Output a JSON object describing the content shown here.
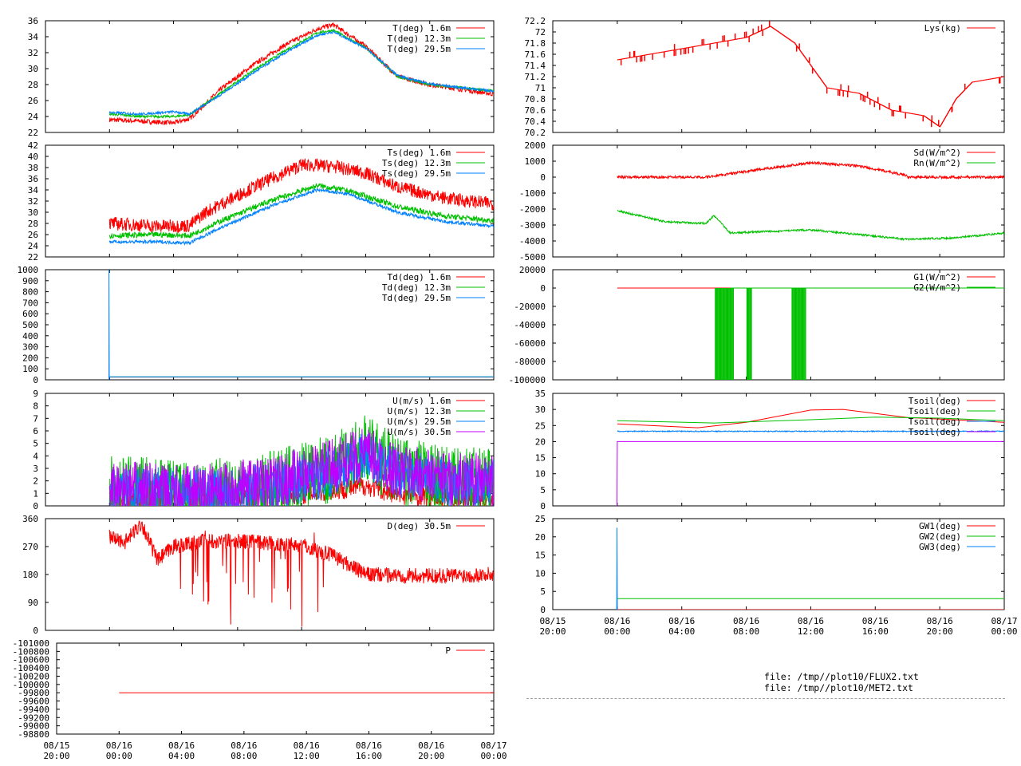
{
  "colors": {
    "red": "#ff0000",
    "green": "#00c000",
    "blue": "#0080ff",
    "purple": "#c000ff"
  },
  "footer": {
    "files": [
      "file: /tmp//plot10/FLUX2.txt",
      "file: /tmp//plot10/MET2.txt"
    ]
  },
  "time_axis": {
    "start": "08/15 20:00",
    "end": "08/17 00:00",
    "ticks": [
      {
        "t": "2008-08-15T20:00",
        "date": "08/15",
        "time": "20:00"
      },
      {
        "t": "2008-08-16T00:00",
        "date": "08/16",
        "time": "00:00"
      },
      {
        "t": "2008-08-16T04:00",
        "date": "08/16",
        "time": "04:00"
      },
      {
        "t": "2008-08-16T08:00",
        "date": "08/16",
        "time": "08:00"
      },
      {
        "t": "2008-08-16T12:00",
        "date": "08/16",
        "time": "12:00"
      },
      {
        "t": "2008-08-16T16:00",
        "date": "08/16",
        "time": "16:00"
      },
      {
        "t": "2008-08-16T20:00",
        "date": "08/16",
        "time": "20:00"
      },
      {
        "t": "2008-08-17T00:00",
        "date": "08/17",
        "time": "00:00"
      }
    ]
  },
  "chart_data": [
    {
      "id": "air-temperature",
      "type": "line",
      "ylim": [
        22,
        36
      ],
      "yticks": [
        "22",
        "24",
        "26",
        "28",
        "30",
        "32",
        "34",
        "36"
      ],
      "series": [
        {
          "name": "T(deg)  1.6m",
          "color": "red",
          "noise": 0.3,
          "x": [
            "2008-08-16T00:00",
            "2008-08-16T02:00",
            "2008-08-16T04:00",
            "2008-08-16T05:00",
            "2008-08-16T07:00",
            "2008-08-16T09:00",
            "2008-08-16T11:00",
            "2008-08-16T13:00",
            "2008-08-16T14:00",
            "2008-08-16T16:00",
            "2008-08-16T18:00",
            "2008-08-16T20:00",
            "2008-08-16T22:00",
            "2008-08-17T00:00"
          ],
          "y": [
            23.6,
            23.4,
            23.2,
            23.7,
            27.5,
            30.5,
            33.0,
            35.0,
            35.5,
            32.8,
            29.0,
            28.0,
            27.4,
            26.8
          ]
        },
        {
          "name": "T(deg) 12.3m",
          "color": "green",
          "noise": 0.15,
          "x": [
            "2008-08-16T00:00",
            "2008-08-16T02:00",
            "2008-08-16T04:00",
            "2008-08-16T05:00",
            "2008-08-16T07:00",
            "2008-08-16T09:00",
            "2008-08-16T11:00",
            "2008-08-16T13:00",
            "2008-08-16T14:00",
            "2008-08-16T16:00",
            "2008-08-16T18:00",
            "2008-08-16T20:00",
            "2008-08-16T22:00",
            "2008-08-17T00:00"
          ],
          "y": [
            24.3,
            24.0,
            24.0,
            24.2,
            27.0,
            29.8,
            32.3,
            34.5,
            34.8,
            32.6,
            29.0,
            28.0,
            27.6,
            27.2
          ]
        },
        {
          "name": "T(deg) 29.5m",
          "color": "blue",
          "noise": 0.15,
          "x": [
            "2008-08-16T00:00",
            "2008-08-16T02:00",
            "2008-08-16T04:00",
            "2008-08-16T05:00",
            "2008-08-16T07:00",
            "2008-08-16T09:00",
            "2008-08-16T11:00",
            "2008-08-16T13:00",
            "2008-08-16T14:00",
            "2008-08-16T16:00",
            "2008-08-16T18:00",
            "2008-08-16T20:00",
            "2008-08-16T22:00",
            "2008-08-17T00:00"
          ],
          "y": [
            24.5,
            24.3,
            24.6,
            24.3,
            26.8,
            29.5,
            32.0,
            34.2,
            34.6,
            32.6,
            29.1,
            28.1,
            27.6,
            27.2
          ]
        }
      ]
    },
    {
      "id": "surface-temperature",
      "type": "line",
      "ylim": [
        22,
        42
      ],
      "yticks": [
        "22",
        "24",
        "26",
        "28",
        "30",
        "32",
        "34",
        "36",
        "38",
        "40",
        "42"
      ],
      "series": [
        {
          "name": "Ts(deg)  1.6m",
          "color": "red",
          "noise": 1.2,
          "x": [
            "2008-08-16T00:00",
            "2008-08-16T03:00",
            "2008-08-16T05:00",
            "2008-08-16T06:00",
            "2008-08-16T09:00",
            "2008-08-16T12:00",
            "2008-08-16T14:00",
            "2008-08-16T16:00",
            "2008-08-16T18:00",
            "2008-08-16T21:00",
            "2008-08-17T00:00"
          ],
          "y": [
            28.0,
            27.5,
            27.6,
            30.0,
            34.5,
            38.5,
            38.2,
            37.0,
            34.5,
            32.5,
            31.5
          ]
        },
        {
          "name": "Ts(deg) 12.3m",
          "color": "green",
          "noise": 0.5,
          "x": [
            "2008-08-16T00:00",
            "2008-08-16T03:00",
            "2008-08-16T05:00",
            "2008-08-16T07:00",
            "2008-08-16T10:00",
            "2008-08-16T13:00",
            "2008-08-16T15:00",
            "2008-08-16T18:00",
            "2008-08-16T21:00",
            "2008-08-17T00:00"
          ],
          "y": [
            25.8,
            26.0,
            25.8,
            28.5,
            32.0,
            34.8,
            33.8,
            31.0,
            29.3,
            28.5
          ]
        },
        {
          "name": "Ts(deg) 29.5m",
          "color": "blue",
          "noise": 0.3,
          "x": [
            "2008-08-16T00:00",
            "2008-08-16T03:00",
            "2008-08-16T05:00",
            "2008-08-16T07:00",
            "2008-08-16T10:00",
            "2008-08-16T13:00",
            "2008-08-16T15:00",
            "2008-08-16T18:00",
            "2008-08-16T21:00",
            "2008-08-17T00:00"
          ],
          "y": [
            24.7,
            24.7,
            24.5,
            27.3,
            31.0,
            34.0,
            33.2,
            30.0,
            28.3,
            27.5
          ]
        }
      ]
    },
    {
      "id": "dewpoint-temperature",
      "type": "line",
      "ylim": [
        0,
        1000
      ],
      "yticks": [
        "0",
        "100",
        "200",
        "300",
        "400",
        "500",
        "600",
        "700",
        "800",
        "900",
        "1000"
      ],
      "series": [
        {
          "name": "Td(deg)  1.6m",
          "color": "red",
          "noise": 0,
          "x": [
            "2008-08-16T00:00",
            "2008-08-17T00:00"
          ],
          "y": [
            25,
            25
          ]
        },
        {
          "name": "Td(deg) 12.3m",
          "color": "green",
          "noise": 0,
          "x": [
            "2008-08-16T00:00",
            "2008-08-17T00:00"
          ],
          "y": [
            26,
            26
          ]
        },
        {
          "name": "Td(deg) 29.5m",
          "color": "blue",
          "noise": 0,
          "x": [
            "2008-08-15T23:58",
            "2008-08-15T23:58",
            "2008-08-15T23:59",
            "2008-08-16T00:00",
            "2008-08-17T00:00"
          ],
          "y": [
            0,
            1000,
            20,
            27,
            27
          ]
        }
      ]
    },
    {
      "id": "wind-speed",
      "type": "line",
      "ylim": [
        0,
        9
      ],
      "yticks": [
        "0",
        "1",
        "2",
        "3",
        "4",
        "5",
        "6",
        "7",
        "8",
        "9"
      ],
      "series": [
        {
          "name": "U(m/s)  1.6m",
          "color": "red",
          "noise": 0.8,
          "x": [
            "2008-08-16T00:00",
            "2008-08-16T06:00",
            "2008-08-16T10:00",
            "2008-08-16T14:00",
            "2008-08-16T16:00",
            "2008-08-16T18:00",
            "2008-08-16T21:00",
            "2008-08-17T00:00"
          ],
          "y": [
            0.3,
            0.4,
            0.7,
            1.2,
            1.6,
            0.9,
            0.7,
            0.6
          ]
        },
        {
          "name": "U(m/s) 12.3m",
          "color": "green",
          "noise": 2.8,
          "x": [
            "2008-08-16T00:00",
            "2008-08-16T06:00",
            "2008-08-16T10:00",
            "2008-08-16T14:00",
            "2008-08-16T16:00",
            "2008-08-16T18:00",
            "2008-08-16T21:00",
            "2008-08-17T00:00"
          ],
          "y": [
            1.2,
            1.0,
            1.6,
            3.0,
            4.5,
            2.8,
            2.0,
            1.8
          ]
        },
        {
          "name": "U(m/s) 29.5m",
          "color": "blue",
          "noise": 2.0,
          "x": [
            "2008-08-16T00:00",
            "2008-08-16T06:00",
            "2008-08-16T10:00",
            "2008-08-16T14:00",
            "2008-08-16T16:00",
            "2008-08-16T18:00",
            "2008-08-16T21:00",
            "2008-08-17T00:00"
          ],
          "y": [
            1.2,
            1.0,
            1.5,
            2.8,
            4.0,
            2.6,
            1.9,
            1.7
          ]
        },
        {
          "name": "U(m/s) 30.5m",
          "color": "purple",
          "noise": 2.2,
          "x": [
            "2008-08-16T00:00",
            "2008-08-16T02:00",
            "2008-08-16T04:00",
            "2008-08-16T06:00",
            "2008-08-16T10:00",
            "2008-08-16T14:00",
            "2008-08-16T16:00",
            "2008-08-16T18:00",
            "2008-08-16T21:00",
            "2008-08-17T00:00"
          ],
          "y": [
            1.2,
            1.4,
            1.0,
            1.2,
            1.8,
            3.2,
            4.2,
            2.8,
            2.2,
            2.0
          ]
        }
      ]
    },
    {
      "id": "wind-direction",
      "type": "line",
      "ylim": [
        0,
        360
      ],
      "yticks": [
        "0",
        "90",
        "180",
        "270",
        "360"
      ],
      "series": [
        {
          "name": "D(deg)  30.5m",
          "color": "red",
          "noise": 25,
          "spikes": [
            0.3,
            0.62
          ],
          "x": [
            "2008-08-16T00:00",
            "2008-08-16T01:00",
            "2008-08-16T02:00",
            "2008-08-16T03:00",
            "2008-08-16T04:00",
            "2008-08-16T06:00",
            "2008-08-16T09:00",
            "2008-08-16T12:00",
            "2008-08-16T14:00",
            "2008-08-16T16:00",
            "2008-08-16T20:00",
            "2008-08-17T00:00"
          ],
          "y": [
            300,
            285,
            345,
            225,
            270,
            290,
            285,
            275,
            240,
            180,
            175,
            180
          ]
        }
      ]
    },
    {
      "id": "pressure",
      "type": "line",
      "ylim": [
        -101000,
        -98800
      ],
      "yticks_desc": true,
      "yticks": [
        "-101000",
        "-100800",
        "-100600",
        "-100400",
        "-100200",
        "-100000",
        "-99800",
        "-99600",
        "-99400",
        "-99200",
        "-99000",
        "-98800"
      ],
      "series": [
        {
          "name": "P",
          "color": "red",
          "noise": 0,
          "x": [
            "2008-08-16T00:00",
            "2008-08-17T00:00"
          ],
          "y": [
            -100000,
            -100000
          ]
        }
      ]
    },
    {
      "id": "lysimeter",
      "type": "line",
      "ylim": [
        70.2,
        72.2
      ],
      "yticks": [
        "70.2",
        "70.4",
        "70.6",
        "70.8",
        "71",
        "71.2",
        "71.4",
        "71.6",
        "71.8",
        "72",
        "72.2"
      ],
      "series": [
        {
          "name": "Lys(kg)",
          "color": "red",
          "noise": 0.08,
          "step": true,
          "x": [
            "2008-08-16T00:00",
            "2008-08-16T02:00",
            "2008-08-16T04:00",
            "2008-08-16T06:00",
            "2008-08-16T08:00",
            "2008-08-16T09:30",
            "2008-08-16T11:00",
            "2008-08-16T12:00",
            "2008-08-16T13:00",
            "2008-08-16T15:00",
            "2008-08-16T17:00",
            "2008-08-16T19:00",
            "2008-08-16T20:00",
            "2008-08-16T21:00",
            "2008-08-16T22:00",
            "2008-08-17T00:00"
          ],
          "y": [
            71.5,
            71.6,
            71.7,
            71.8,
            71.9,
            72.1,
            71.8,
            71.4,
            71.0,
            70.9,
            70.6,
            70.5,
            70.3,
            70.8,
            71.1,
            71.2
          ]
        }
      ]
    },
    {
      "id": "radiation",
      "type": "line",
      "ylim": [
        -5000,
        2000
      ],
      "yticks": [
        "-5000",
        "-4000",
        "-3000",
        "-2000",
        "-1000",
        "0",
        "1000",
        "2000"
      ],
      "series": [
        {
          "name": "Sd(W/m^2)",
          "color": "red",
          "noise": 80,
          "x": [
            "2008-08-16T00:00",
            "2008-08-16T05:30",
            "2008-08-16T09:00",
            "2008-08-16T12:00",
            "2008-08-16T15:00",
            "2008-08-16T18:00",
            "2008-08-16T18:01",
            "2008-08-17T00:00"
          ],
          "y": [
            0,
            0,
            500,
            900,
            700,
            100,
            0,
            0
          ]
        },
        {
          "name": "Rn(W/m^2)",
          "color": "green",
          "noise": 60,
          "x": [
            "2008-08-16T00:00",
            "2008-08-16T03:00",
            "2008-08-16T05:30",
            "2008-08-16T06:00",
            "2008-08-16T07:00",
            "2008-08-16T12:00",
            "2008-08-16T15:00",
            "2008-08-16T18:00",
            "2008-08-16T21:00",
            "2008-08-17T00:00"
          ],
          "y": [
            -2100,
            -2800,
            -2900,
            -2400,
            -3500,
            -3300,
            -3600,
            -3900,
            -3800,
            -3500
          ]
        }
      ]
    },
    {
      "id": "ground-heat-flux",
      "type": "line",
      "ylim": [
        -100000,
        20000
      ],
      "yticks": [
        "-100000",
        "-80000",
        "-60000",
        "-40000",
        "-20000",
        "0",
        "20000"
      ],
      "series": [
        {
          "name": "G1(W/m^2)",
          "color": "red",
          "noise": 0,
          "x": [
            "2008-08-16T00:00",
            "2008-08-17T00:00"
          ],
          "y": [
            0,
            0
          ]
        },
        {
          "name": "G2(W/m^2)",
          "color": "green",
          "noise": 0,
          "gaps": [
            [
              0.36,
              0.4
            ],
            [
              0.43,
              0.44
            ],
            [
              0.53,
              0.56
            ]
          ],
          "x": [
            "2008-08-16T07:00",
            "2008-08-17T00:00"
          ],
          "y": [
            0,
            0
          ]
        }
      ]
    },
    {
      "id": "soil-temperature",
      "type": "line",
      "ylim": [
        0,
        35
      ],
      "yticks": [
        "0",
        "5",
        "10",
        "15",
        "20",
        "25",
        "30",
        "35"
      ],
      "series": [
        {
          "name": "Tsoil(deg)",
          "color": "red",
          "noise": 0,
          "x": [
            "2008-08-16T00:00",
            "2008-08-16T05:00",
            "2008-08-16T08:00",
            "2008-08-16T12:00",
            "2008-08-16T14:00",
            "2008-08-16T18:00",
            "2008-08-17T00:00"
          ],
          "y": [
            25.5,
            24.3,
            26.0,
            29.8,
            30.0,
            27.5,
            26.0
          ]
        },
        {
          "name": "Tsoil(deg)",
          "color": "green",
          "noise": 0,
          "x": [
            "2008-08-16T00:00",
            "2008-08-16T06:00",
            "2008-08-16T12:00",
            "2008-08-16T16:00",
            "2008-08-16T20:00",
            "2008-08-17T00:00"
          ],
          "y": [
            26.5,
            25.8,
            26.8,
            27.6,
            27.3,
            26.5
          ]
        },
        {
          "name": "Tsoil(deg)",
          "color": "blue",
          "noise": 0.15,
          "x": [
            "2008-08-16T00:00",
            "2008-08-17T00:00"
          ],
          "y": [
            23.2,
            23.2
          ]
        },
        {
          "name": "Tsoil(deg)",
          "color": "purple",
          "noise": 0,
          "x": [
            "2008-08-15T23:59",
            "2008-08-16T00:00",
            "2008-08-17T00:00"
          ],
          "y": [
            0,
            20,
            20
          ]
        }
      ]
    },
    {
      "id": "groundwater",
      "type": "line",
      "ylim": [
        0,
        25
      ],
      "yticks": [
        "0",
        "5",
        "10",
        "15",
        "20",
        "25"
      ],
      "series": [
        {
          "name": "GW1(deg)",
          "color": "red",
          "noise": 0,
          "x": [
            "2008-08-16T00:00",
            "2008-08-17T00:00"
          ],
          "y": [
            0,
            0
          ]
        },
        {
          "name": "GW2(deg)",
          "color": "green",
          "noise": 0,
          "x": [
            "2008-08-16T00:00",
            "2008-08-17T00:00"
          ],
          "y": [
            3,
            3
          ]
        },
        {
          "name": "GW3(deg)",
          "color": "blue",
          "noise": 0,
          "x": [
            "2008-08-15T23:58",
            "2008-08-15T23:59",
            "2008-08-16T00:00"
          ],
          "y": [
            0,
            22.5,
            0
          ]
        }
      ]
    }
  ]
}
